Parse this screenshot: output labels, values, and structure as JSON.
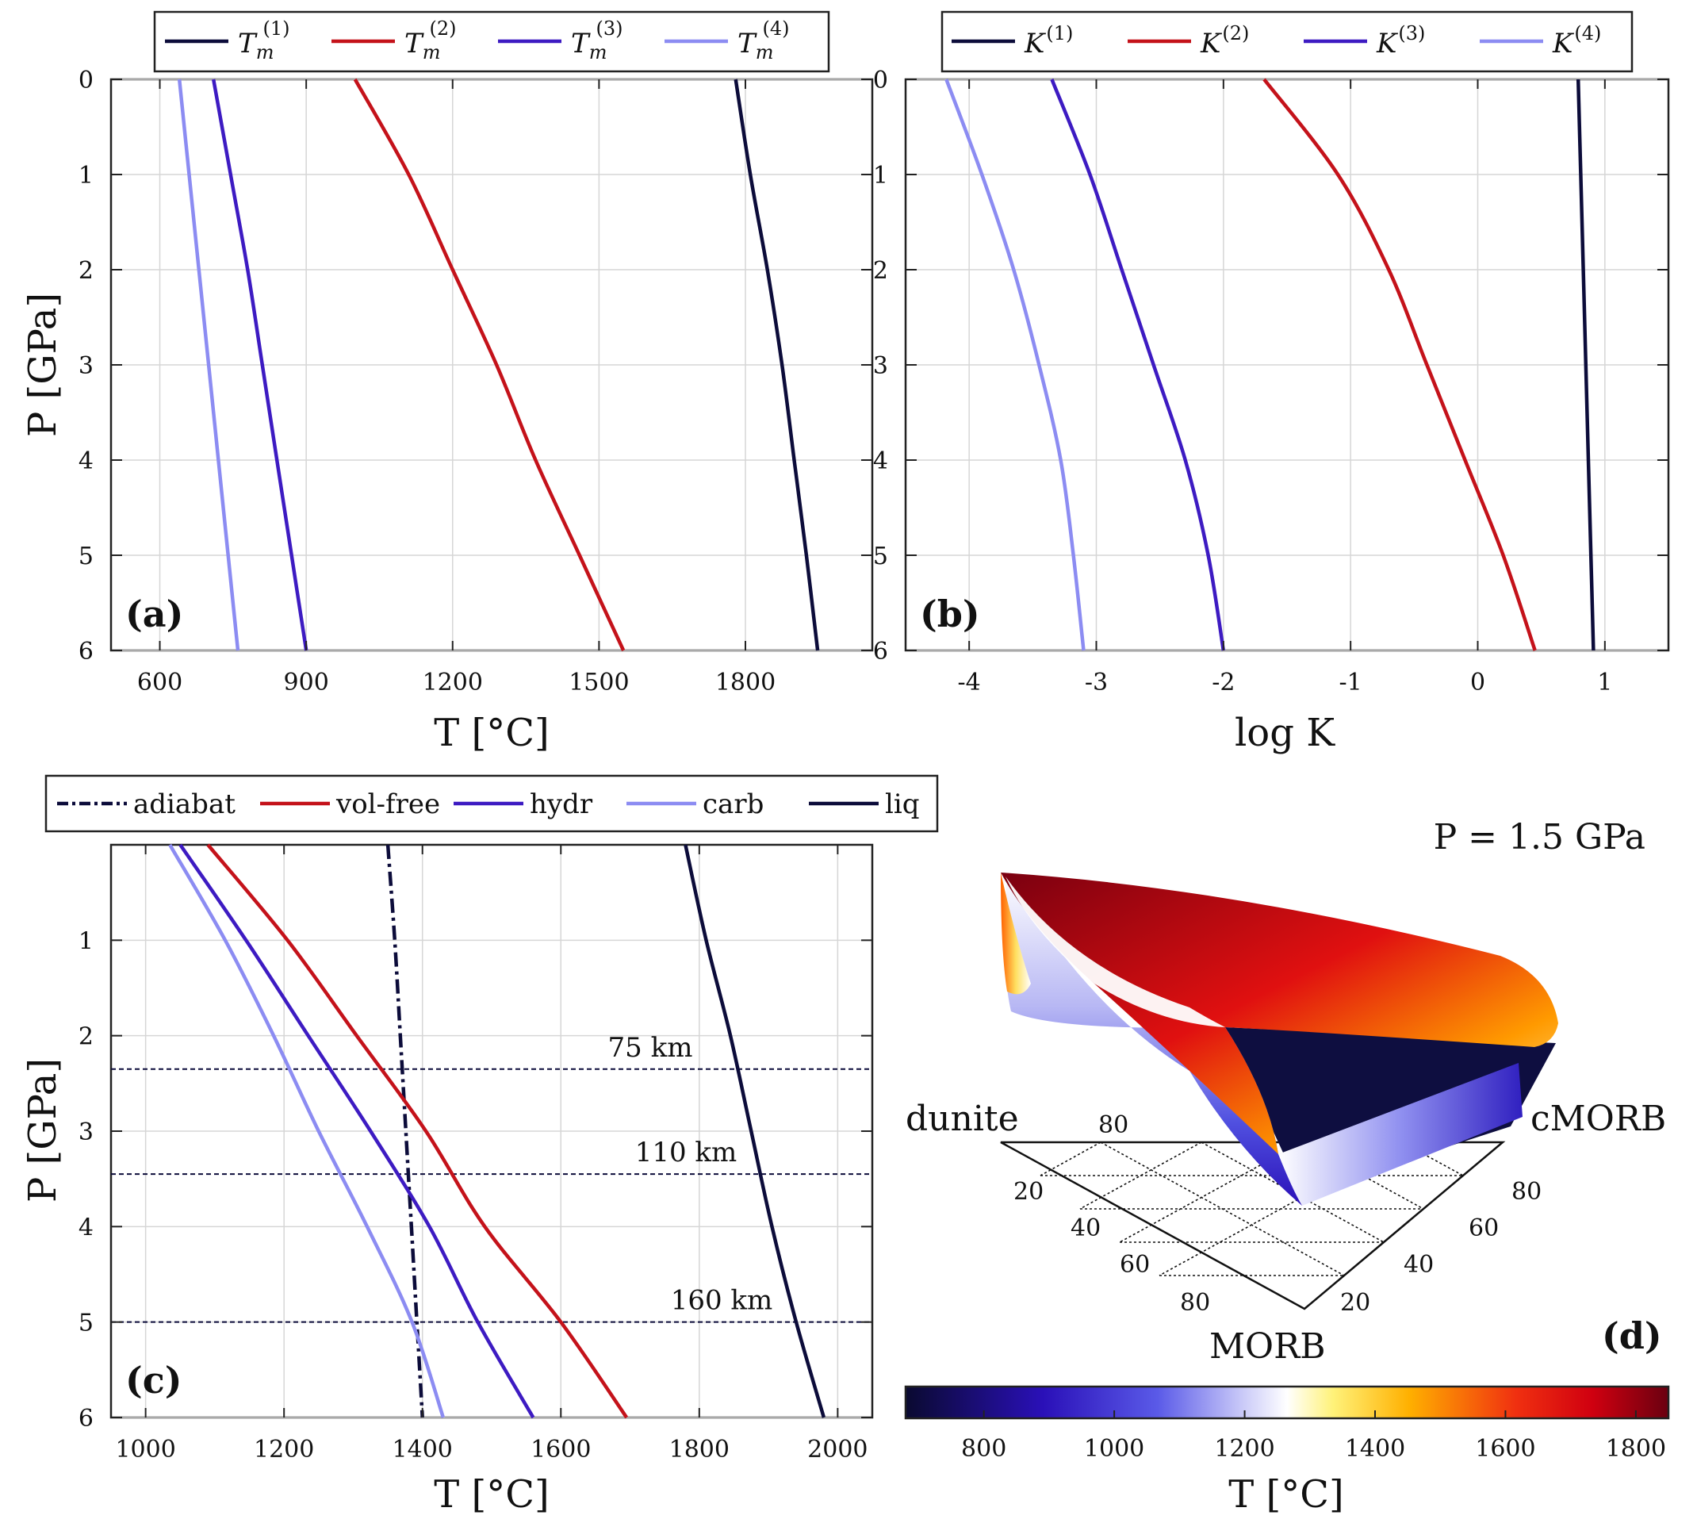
{
  "chart_data": [
    {
      "panel": "(a)",
      "type": "line",
      "xlabel": "T [°C]",
      "ylabel": "P [GPa]",
      "xlim": [
        500,
        2060
      ],
      "ylim": [
        0,
        6
      ],
      "y_reversed": true,
      "xticks": [
        600,
        900,
        1200,
        1500,
        1800
      ],
      "yticks": [
        0,
        1,
        2,
        3,
        4,
        5,
        6
      ],
      "grid": true,
      "legend_position": "top-outside",
      "series": [
        {
          "name": "T_m^(1)",
          "label_main": "T",
          "label_sub": "m",
          "label_sup": "(1)",
          "color": "#0c0c3a",
          "points": [
            [
              1780,
              0
            ],
            [
              1810,
              1
            ],
            [
              1845,
              2
            ],
            [
              1875,
              3
            ],
            [
              1900,
              4
            ],
            [
              1925,
              5
            ],
            [
              1948,
              6
            ]
          ]
        },
        {
          "name": "T_m^(2)",
          "label_main": "T",
          "label_sub": "m",
          "label_sup": "(2)",
          "color": "#c4121a",
          "points": [
            [
              1000,
              0
            ],
            [
              1110,
              1
            ],
            [
              1200,
              2
            ],
            [
              1290,
              3
            ],
            [
              1370,
              4
            ],
            [
              1460,
              5
            ],
            [
              1550,
              6
            ]
          ]
        },
        {
          "name": "T_m^(3)",
          "label_main": "T",
          "label_sub": "m",
          "label_sup": "(3)",
          "color": "#3d1bc2",
          "points": [
            [
              710,
              0
            ],
            [
              745,
              1
            ],
            [
              780,
              2
            ],
            [
              810,
              3
            ],
            [
              840,
              4
            ],
            [
              870,
              5
            ],
            [
              900,
              6
            ]
          ]
        },
        {
          "name": "T_m^(4)",
          "label_main": "T",
          "label_sub": "m",
          "label_sup": "(4)",
          "color": "#8c8cf2",
          "points": [
            [
              640,
              0
            ],
            [
              660,
              1
            ],
            [
              680,
              2
            ],
            [
              700,
              3
            ],
            [
              720,
              4
            ],
            [
              740,
              5
            ],
            [
              760,
              6
            ]
          ]
        }
      ]
    },
    {
      "panel": "(b)",
      "type": "line",
      "xlabel": "log K",
      "ylabel": "",
      "xlim": [
        -4.5,
        1.5
      ],
      "ylim": [
        0,
        6
      ],
      "y_reversed": true,
      "xticks": [
        -4,
        -3,
        -2,
        -1,
        0,
        1
      ],
      "yticks": [
        0,
        1,
        2,
        3,
        4,
        5,
        6
      ],
      "grid": true,
      "legend_position": "top-outside",
      "series": [
        {
          "name": "K^(1)",
          "label_main": "K",
          "label_sub": "",
          "label_sup": "(1)",
          "color": "#0c0c3a",
          "points": [
            [
              0.79,
              0
            ],
            [
              0.81,
              1
            ],
            [
              0.83,
              2
            ],
            [
              0.85,
              3
            ],
            [
              0.87,
              4
            ],
            [
              0.89,
              5
            ],
            [
              0.91,
              6
            ]
          ]
        },
        {
          "name": "K^(2)",
          "label_main": "K",
          "label_sub": "",
          "label_sup": "(2)",
          "color": "#c4121a",
          "points": [
            [
              -1.68,
              0
            ],
            [
              -1.1,
              1
            ],
            [
              -0.7,
              2
            ],
            [
              -0.4,
              3
            ],
            [
              -0.1,
              4
            ],
            [
              0.2,
              5
            ],
            [
              0.45,
              6
            ]
          ]
        },
        {
          "name": "K^(3)",
          "label_main": "K",
          "label_sub": "",
          "label_sup": "(3)",
          "color": "#3d1bc2",
          "points": [
            [
              -3.35,
              0
            ],
            [
              -3.05,
              1
            ],
            [
              -2.8,
              2
            ],
            [
              -2.55,
              3
            ],
            [
              -2.3,
              4
            ],
            [
              -2.12,
              5
            ],
            [
              -2.0,
              6
            ]
          ]
        },
        {
          "name": "K^(4)",
          "label_main": "K",
          "label_sub": "",
          "label_sup": "(4)",
          "color": "#8c8cf2",
          "points": [
            [
              -4.18,
              0
            ],
            [
              -3.9,
              1
            ],
            [
              -3.65,
              2
            ],
            [
              -3.45,
              3
            ],
            [
              -3.28,
              4
            ],
            [
              -3.18,
              5
            ],
            [
              -3.1,
              6
            ]
          ]
        }
      ]
    },
    {
      "panel": "(c)",
      "type": "line",
      "xlabel": "T [°C]",
      "ylabel": "P [GPa]",
      "xlim": [
        950,
        2050
      ],
      "ylim": [
        0,
        6
      ],
      "y_reversed": true,
      "xticks": [
        1000,
        1200,
        1400,
        1600,
        1800,
        2000
      ],
      "yticks": [
        1,
        2,
        3,
        4,
        5,
        6
      ],
      "grid": true,
      "legend_position": "top-outside",
      "series": [
        {
          "name": "adiabat",
          "color": "#0c0c3a",
          "dash": true,
          "points": [
            [
              1350,
              0
            ],
            [
              1360,
              1
            ],
            [
              1368,
              2
            ],
            [
              1376,
              3
            ],
            [
              1384,
              4
            ],
            [
              1392,
              5
            ],
            [
              1400,
              6
            ]
          ]
        },
        {
          "name": "vol-free",
          "color": "#c4121a",
          "points": [
            [
              1090,
              0
            ],
            [
              1205,
              1
            ],
            [
              1305,
              2
            ],
            [
              1405,
              3
            ],
            [
              1490,
              4
            ],
            [
              1600,
              5
            ],
            [
              1695,
              6
            ]
          ]
        },
        {
          "name": "hydr",
          "color": "#3d1bc2",
          "points": [
            [
              1050,
              0
            ],
            [
              1145,
              1
            ],
            [
              1235,
              2
            ],
            [
              1325,
              3
            ],
            [
              1410,
              4
            ],
            [
              1480,
              5
            ],
            [
              1560,
              6
            ]
          ]
        },
        {
          "name": "carb",
          "color": "#8c8cf2",
          "points": [
            [
              1035,
              0
            ],
            [
              1115,
              1
            ],
            [
              1185,
              2
            ],
            [
              1250,
              3
            ],
            [
              1320,
              4
            ],
            [
              1385,
              5
            ],
            [
              1430,
              6
            ]
          ]
        },
        {
          "name": "liq",
          "color": "#0c0c3a",
          "points": [
            [
              1780,
              0
            ],
            [
              1810,
              1
            ],
            [
              1845,
              2
            ],
            [
              1875,
              3
            ],
            [
              1905,
              4
            ],
            [
              1940,
              5
            ],
            [
              1980,
              6
            ]
          ]
        }
      ],
      "depth_lines": [
        {
          "label": "75 km",
          "P": 2.35
        },
        {
          "label": "110 km",
          "P": 3.45
        },
        {
          "label": "160 km",
          "P": 5.0
        }
      ]
    },
    {
      "panel": "(d)",
      "type": "surface",
      "annotation": "P = 1.5 GPa",
      "ternary_vertices": [
        "dunite",
        "cMORB",
        "MORB"
      ],
      "ternary_ticks_left": [
        "80",
        "20",
        "40",
        "60",
        "80"
      ],
      "ternary_ticks_right": [
        "20",
        "80",
        "60",
        "40",
        "20"
      ],
      "colorbar": {
        "label": "T [°C]",
        "range": [
          680,
          1850
        ],
        "ticks": [
          800,
          1000,
          1200,
          1400,
          1600,
          1800
        ]
      }
    }
  ]
}
